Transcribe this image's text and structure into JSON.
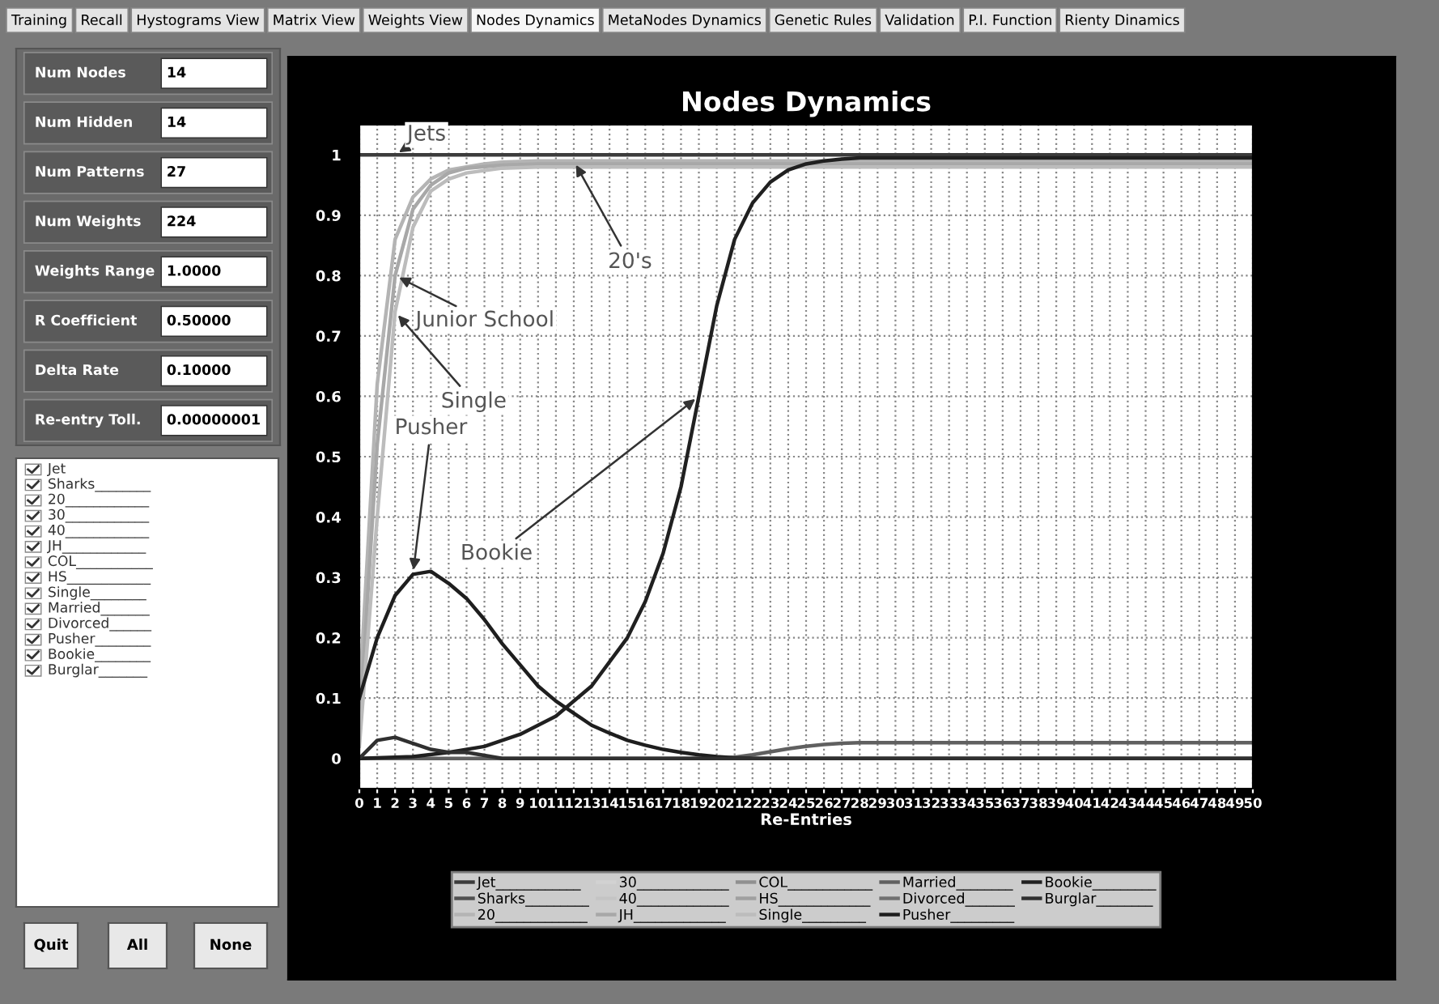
{
  "chart_data": [
    {
      "type": "line",
      "title": "Nodes Dynamics",
      "xlabel": "Re-Entries",
      "xlim": [
        0,
        50
      ],
      "xticks": [
        0,
        1,
        2,
        3,
        4,
        5,
        6,
        7,
        8,
        9,
        10,
        11,
        12,
        13,
        14,
        15,
        16,
        17,
        18,
        19,
        20,
        21,
        22,
        23,
        24,
        25,
        26,
        27,
        28,
        29,
        30,
        31,
        32,
        33,
        34,
        35,
        36,
        37,
        38,
        39,
        40,
        41,
        42,
        43,
        44,
        45,
        46,
        47,
        48,
        49,
        50
      ],
      "ylim": [
        -0.05,
        1.05
      ],
      "yticks": [
        0,
        0.1,
        0.2,
        0.3,
        0.4,
        0.5,
        0.6,
        0.7,
        0.8,
        0.9,
        1
      ],
      "grid": true,
      "legend": "bottom",
      "line_style": "solid",
      "series": [
        {
          "name": "Jet____________",
          "color": "#3c3c3c",
          "x": [
            0,
            50
          ],
          "values": [
            1,
            1
          ]
        },
        {
          "name": "Sharks_________",
          "color": "#505050"
        },
        {
          "name": "20_____________",
          "color": "#b4b4b4",
          "x": [
            0,
            1,
            2,
            3,
            4,
            5,
            6,
            7,
            8,
            10,
            12,
            50
          ],
          "values": [
            0.1,
            0.62,
            0.86,
            0.93,
            0.96,
            0.975,
            0.98,
            0.985,
            0.988,
            0.99,
            0.99,
            0.99
          ]
        },
        {
          "name": "30_____________",
          "color": "#d2d2d2"
        },
        {
          "name": "40_____________",
          "color": "#c4c4c4"
        },
        {
          "name": "JH_____________",
          "color": "#a8a8a8",
          "x": [
            0,
            1,
            2,
            3,
            4,
            5,
            6,
            8,
            10,
            12,
            50
          ],
          "values": [
            0.05,
            0.52,
            0.8,
            0.91,
            0.95,
            0.97,
            0.978,
            0.983,
            0.985,
            0.985,
            0.985
          ]
        },
        {
          "name": "COL____________",
          "color": "#909090"
        },
        {
          "name": "HS_____________",
          "color": "#a0a0a0"
        },
        {
          "name": "Single_________",
          "color": "#bcbcbc",
          "x": [
            0,
            1,
            2,
            3,
            4,
            5,
            6,
            8,
            10,
            12,
            50
          ],
          "values": [
            0.02,
            0.4,
            0.74,
            0.88,
            0.94,
            0.96,
            0.97,
            0.978,
            0.98,
            0.98,
            0.98
          ]
        },
        {
          "name": "Married________",
          "color": "#606060",
          "x": [
            0,
            20,
            21,
            22,
            23,
            24,
            25,
            26,
            27,
            28,
            50
          ],
          "values": [
            0,
            0,
            0.002,
            0.006,
            0.011,
            0.016,
            0.02,
            0.023,
            0.025,
            0.026,
            0.026
          ]
        },
        {
          "name": "Divorced_______",
          "color": "#707070"
        },
        {
          "name": "Pusher_________",
          "color": "#1e1e1e",
          "x": [
            0,
            1,
            2,
            3,
            4,
            5,
            6,
            7,
            8,
            9,
            10,
            11,
            12,
            13,
            14,
            15,
            16,
            17,
            18,
            19,
            20,
            21,
            22,
            50
          ],
          "values": [
            0.1,
            0.2,
            0.27,
            0.305,
            0.31,
            0.29,
            0.265,
            0.23,
            0.19,
            0.155,
            0.12,
            0.095,
            0.075,
            0.055,
            0.042,
            0.03,
            0.022,
            0.015,
            0.01,
            0.006,
            0.003,
            0.001,
            0,
            0
          ]
        },
        {
          "name": "Bookie_________",
          "color": "#202020",
          "x": [
            0,
            3,
            5,
            7,
            9,
            11,
            13,
            15,
            16,
            17,
            18,
            19,
            20,
            21,
            22,
            23,
            24,
            25,
            26,
            27,
            28,
            30,
            50
          ],
          "values": [
            0,
            0.003,
            0.01,
            0.02,
            0.04,
            0.07,
            0.12,
            0.2,
            0.26,
            0.34,
            0.45,
            0.6,
            0.75,
            0.86,
            0.92,
            0.955,
            0.975,
            0.985,
            0.99,
            0.993,
            0.995,
            0.995,
            0.995
          ]
        },
        {
          "name": "Burglar________",
          "color": "#303030",
          "x": [
            0,
            1,
            2,
            3,
            4,
            5,
            6,
            7,
            8,
            50
          ],
          "values": [
            0,
            0.03,
            0.035,
            0.025,
            0.015,
            0.01,
            0.01,
            0.005,
            0,
            0
          ]
        }
      ],
      "annotations": [
        {
          "text": "Jets",
          "x": 2,
          "y": 1
        },
        {
          "text": "20's",
          "x": 12,
          "y": 0.99
        },
        {
          "text": "Junior School",
          "x": 2,
          "y": 0.8
        },
        {
          "text": "Single",
          "x": 2,
          "y": 0.74
        },
        {
          "text": "Bookie",
          "x": 19,
          "y": 0.6
        },
        {
          "text": "Pusher",
          "x": 3,
          "y": 0.305
        }
      ]
    },
    {
      "type": "other",
      "annotations": [
        "Training",
        "Recall",
        "Hystograms View",
        "Matrix View",
        "Weights View",
        "Nodes Dynamics",
        "MetaNodes Dynamics",
        "Genetic Rules",
        "Validation",
        "P.I. Function",
        "Rienty Dinamics"
      ]
    },
    {
      "type": "other",
      "annotations": [
        "Num Nodes",
        "14",
        "Num Hidden",
        "14",
        "Num Patterns",
        "27",
        "Num Weights",
        "224",
        "Weights Range",
        "1.0000",
        "R Coefficient",
        "0.50000",
        "Delta Rate",
        "0.10000",
        "Re-entry Toll.",
        "0.00000001"
      ]
    },
    {
      "type": "other",
      "annotations": [
        "Jet",
        "Sharks________",
        "20____________",
        "30____________",
        "40____________",
        "JH____________",
        "COL___________",
        "HS____________",
        "Single________",
        "Married_______",
        "Divorced______",
        "Pusher________",
        "Bookie________",
        "Burglar_______"
      ]
    },
    {
      "type": "other",
      "annotations": [
        "Quit",
        "All",
        "None"
      ]
    }
  ]
}
